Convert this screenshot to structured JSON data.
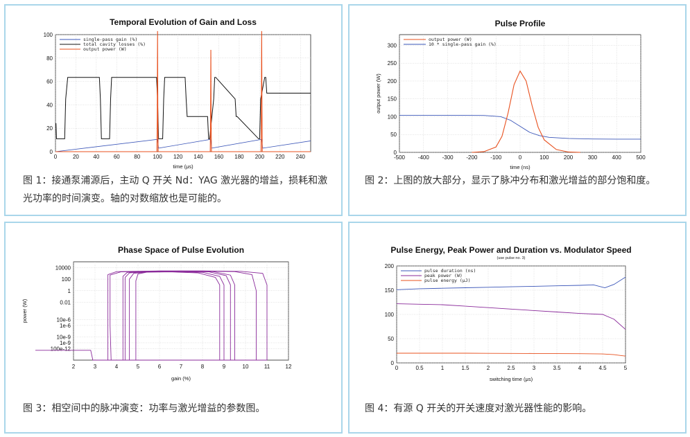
{
  "captions": [
    "图 1：接通泵浦源后，主动 Q 开关 Nd：YAG 激光器的增益，损耗和激光功率的时间演变。轴的对数缩放也是可能的。",
    "图 2：上图的放大部分，显示了脉冲分布和激光增益的部分饱和度。",
    "图 3：相空间中的脉冲演变：功率与激光增益的参数图。",
    "图 4：有源 Q 开关的开关速度对激光器性能的影响。"
  ],
  "colors": {
    "border": "#a9d6ea",
    "blue": "#3a55b8",
    "black": "#111111",
    "orange": "#e8501e",
    "purple": "#8a2a9a",
    "grid": "#c8c8c8"
  },
  "chart_data": [
    {
      "type": "line",
      "title": "Temporal Evolution of Gain and Loss",
      "xlabel": "time (μs)",
      "ylabel": "",
      "xlim": [
        0,
        250
      ],
      "ylim": [
        0,
        100
      ],
      "xticks": [
        0,
        20,
        40,
        60,
        80,
        100,
        120,
        140,
        160,
        180,
        200,
        220,
        240
      ],
      "yticks": [
        0,
        20,
        40,
        60,
        80,
        100
      ],
      "grid": true,
      "legend": "top-left",
      "series": [
        {
          "name": "single-pass gain (%)",
          "color": "#3a55b8",
          "x": [
            0,
            100,
            101,
            152,
            153,
            202,
            203,
            250
          ],
          "y": [
            0,
            10.5,
            3,
            10.5,
            3,
            10.5,
            3,
            9.2
          ]
        },
        {
          "name": "total cavity losses (%)",
          "color": "#111111",
          "x": [
            0,
            0.5,
            1,
            9,
            10,
            12,
            43,
            44,
            45,
            53,
            54,
            55,
            99,
            100,
            101,
            105,
            106,
            107,
            127,
            128,
            129,
            149,
            150,
            151,
            155,
            156,
            157,
            176,
            177,
            178,
            199,
            200,
            201,
            205,
            206,
            207,
            249,
            250
          ],
          "y": [
            24,
            24,
            11,
            11,
            45,
            63.5,
            63.5,
            45,
            11,
            11,
            45,
            63.5,
            63.5,
            45,
            11,
            11,
            45,
            63.5,
            63.5,
            45,
            30,
            30,
            11,
            11,
            45,
            63.5,
            63.5,
            45,
            30,
            30,
            11,
            11,
            45,
            63.5,
            63.5,
            50,
            50,
            50
          ]
        },
        {
          "name": "output power (W)",
          "color": "#e8501e",
          "x": [
            0,
            99.4,
            99.7,
            100,
            100.3,
            100.6,
            151.6,
            151.9,
            152.2,
            152.5,
            152.8,
            201.4,
            201.7,
            202,
            202.3,
            202.6,
            250
          ],
          "y": [
            0,
            0,
            30,
            110,
            30,
            0,
            0,
            25,
            87,
            25,
            0,
            0,
            35,
            113,
            35,
            0,
            0
          ]
        }
      ]
    },
    {
      "type": "line",
      "title": "Pulse Profile",
      "xlabel": "time (ns)",
      "ylabel": "output power (W)",
      "xlim": [
        -500,
        500
      ],
      "ylim": [
        0,
        330
      ],
      "xticks": [
        -500,
        -400,
        -300,
        -200,
        -100,
        0,
        100,
        200,
        300,
        400,
        500
      ],
      "yticks": [
        0,
        50,
        100,
        150,
        200,
        250,
        300
      ],
      "grid": true,
      "legend": "top-left",
      "series": [
        {
          "name": "output power (W)",
          "color": "#e8501e",
          "x": [
            -200,
            -150,
            -100,
            -75,
            -50,
            -25,
            0,
            25,
            50,
            75,
            100,
            150,
            200,
            250
          ],
          "y": [
            0,
            2,
            15,
            45,
            110,
            190,
            228,
            200,
            130,
            70,
            35,
            8,
            1,
            0
          ]
        },
        {
          "name": "10 * single-pass gain (%)",
          "color": "#3a55b8",
          "x": [
            -500,
            -300,
            -150,
            -80,
            -40,
            0,
            40,
            80,
            120,
            200,
            300,
            400,
            500
          ],
          "y": [
            104,
            104,
            103.5,
            100,
            90,
            73,
            56,
            47,
            42,
            39,
            37.5,
            37,
            37
          ]
        }
      ]
    },
    {
      "type": "line",
      "title": "Phase Space of Pulse Evolution",
      "xlabel": "gain (%)",
      "ylabel": "power (W)",
      "xlim": [
        2,
        12
      ],
      "ylim": [
        1e-12,
        100000
      ],
      "yscale": "log",
      "xticks": [
        2,
        3,
        4,
        5,
        6,
        7,
        8,
        9,
        10,
        11,
        12
      ],
      "yticks": [
        "100e-12",
        "1e-9",
        "10e-9",
        "1e-6",
        "10e-6",
        "0.01",
        "1",
        "100",
        "10000"
      ],
      "grid": true,
      "loops": [
        {
          "x": [
            10.5,
            10.5,
            10.3,
            9.5,
            8,
            6,
            4.2,
            3.7,
            3.7,
            3.75
          ],
          "y": [
            1e-12,
            1,
            600,
            2000,
            2500,
            2500,
            1800,
            500,
            1e-06,
            1e-12
          ]
        },
        {
          "x": [
            9.5,
            9.5,
            9.3,
            8.5,
            7,
            5.5,
            4.5,
            4.3,
            4.3
          ],
          "y": [
            1e-12,
            10,
            500,
            2000,
            2500,
            2200,
            1500,
            300,
            1e-12
          ]
        },
        {
          "x": [
            9.3,
            9.3,
            9.1,
            8.3,
            7,
            5.5,
            4.6,
            4.4,
            4.4
          ],
          "y": [
            1e-12,
            10,
            400,
            1800,
            2200,
            2000,
            1200,
            200,
            1e-12
          ]
        },
        {
          "x": [
            9.0,
            9.0,
            8.8,
            8,
            6.8,
            5.5,
            4.8,
            4.6,
            4.6
          ],
          "y": [
            1e-12,
            10,
            300,
            1500,
            2000,
            1800,
            1000,
            100,
            1e-12
          ]
        },
        {
          "x": [
            8.8,
            8.8,
            8.6,
            7.8,
            6.5,
            5.4,
            5.0,
            4.9,
            4.9
          ],
          "y": [
            1e-12,
            10,
            200,
            1200,
            1800,
            1600,
            800,
            50,
            1e-12
          ]
        },
        {
          "x": [
            11.0,
            11.0,
            10.8,
            9.8,
            8,
            6,
            4.0,
            3.6,
            3.6
          ],
          "y": [
            1e-12,
            10,
            1000,
            2200,
            2600,
            2600,
            2000,
            600,
            1e-12
          ]
        }
      ],
      "baseline": {
        "x": [
          2,
          2.8,
          2.9,
          11
        ],
        "y": [
          5e-11,
          5e-11,
          1e-12,
          1e-12
        ]
      }
    },
    {
      "type": "line",
      "title": "Pulse Energy, Peak Power and Duration vs. Modulator Speed",
      "subtitle": "(use pulse no. 3)",
      "xlabel": "switching time (μs)",
      "ylabel": "",
      "xlim": [
        0,
        5
      ],
      "ylim": [
        0,
        200
      ],
      "xticks": [
        0,
        0.5,
        1,
        1.5,
        2,
        2.5,
        3,
        3.5,
        4,
        4.5,
        5
      ],
      "yticks": [
        0,
        50,
        100,
        150,
        200
      ],
      "grid": true,
      "legend": "top-left",
      "series": [
        {
          "name": "pulse duration (ns)",
          "color": "#3a55b8",
          "x": [
            0,
            0.5,
            1,
            1.5,
            2,
            2.5,
            3,
            3.5,
            4,
            4.3,
            4.55,
            4.75,
            5
          ],
          "y": [
            151,
            153,
            154,
            155,
            156,
            157,
            158,
            159,
            160,
            161,
            155,
            162,
            177
          ]
        },
        {
          "name": "peak power (W)",
          "color": "#8a2a9a",
          "x": [
            0,
            0.5,
            1,
            1.5,
            2,
            2.5,
            3,
            3.5,
            4,
            4.5,
            4.75,
            5
          ],
          "y": [
            122,
            121,
            120,
            117,
            114,
            111,
            108,
            105,
            102,
            100,
            90,
            69
          ]
        },
        {
          "name": "pulse energy (μJ)",
          "color": "#e8501e",
          "x": [
            0,
            0.5,
            1,
            1.5,
            2,
            2.5,
            3,
            3.5,
            4,
            4.5,
            4.75,
            5
          ],
          "y": [
            20,
            20,
            20,
            20,
            19.8,
            19.6,
            19.4,
            19.2,
            19,
            18.5,
            17,
            14
          ]
        }
      ]
    }
  ]
}
